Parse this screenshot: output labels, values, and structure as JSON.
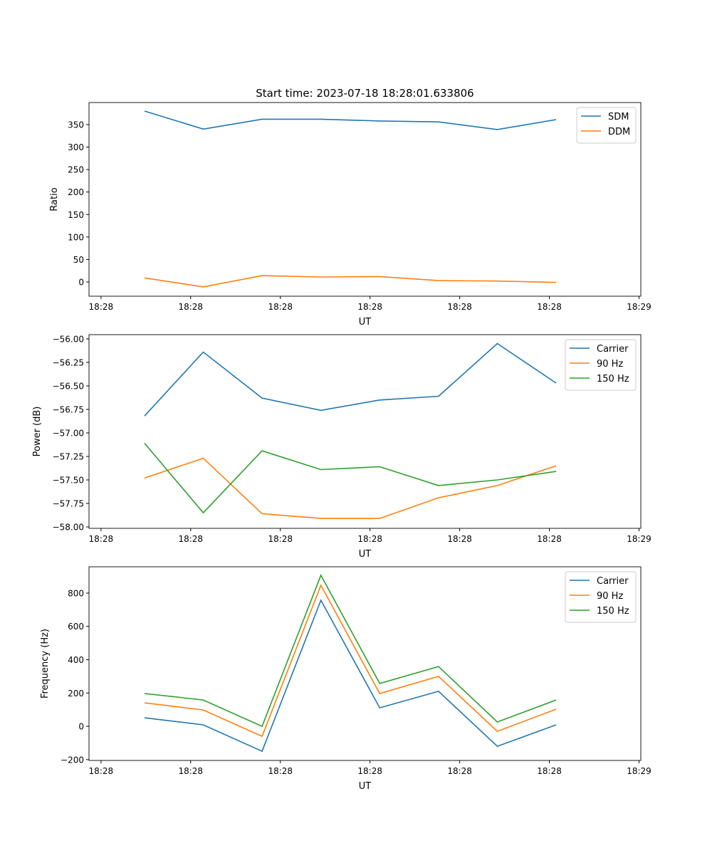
{
  "chart_data": [
    {
      "type": "line",
      "title": "Start time: 2023-07-18 18:28:01.633806",
      "xlabel": "UT",
      "ylabel": "Ratio",
      "x": [
        0,
        1,
        2,
        3,
        4,
        5,
        6,
        7
      ],
      "xlim": [
        -0.944,
        8.44
      ],
      "xticks": [
        -0.74,
        0.785,
        2.31,
        3.835,
        5.36,
        6.885,
        8.41
      ],
      "xtick_labels": [
        "18:28",
        "18:28",
        "18:28",
        "18:28",
        "18:28",
        "18:28",
        "18:29"
      ],
      "ylim": [
        -31.7,
        399
      ],
      "yticks": [
        0,
        50,
        100,
        150,
        200,
        250,
        300,
        350
      ],
      "ytick_labels": [
        "0",
        "50",
        "100",
        "150",
        "200",
        "250",
        "300",
        "350"
      ],
      "legend": "top-right",
      "series": [
        {
          "name": "SDM",
          "color": "#1f77b4",
          "values": [
            380,
            340,
            362,
            362,
            358,
            356,
            339,
            361
          ]
        },
        {
          "name": "DDM",
          "color": "#ff7f0e",
          "values": [
            9,
            -11,
            14,
            11,
            12,
            3,
            2,
            -1
          ]
        }
      ]
    },
    {
      "type": "line",
      "xlabel": "UT",
      "ylabel": "Power (dB)",
      "x": [
        0,
        1,
        2,
        3,
        4,
        5,
        6,
        7
      ],
      "xlim": [
        -0.944,
        8.44
      ],
      "xticks": [
        -0.74,
        0.785,
        2.31,
        3.835,
        5.36,
        6.885,
        8.41
      ],
      "xtick_labels": [
        "18:28",
        "18:28",
        "18:28",
        "18:28",
        "18:28",
        "18:28",
        "18:29"
      ],
      "ylim": [
        -58.015,
        -55.955
      ],
      "yticks": [
        -58.0,
        -57.75,
        -57.5,
        -57.25,
        -57.0,
        -56.75,
        -56.5,
        -56.25,
        -56.0
      ],
      "ytick_labels": [
        "−58.00",
        "−57.75",
        "−57.50",
        "−57.25",
        "−57.00",
        "−56.75",
        "−56.50",
        "−56.25",
        "−56.00"
      ],
      "legend": "top-right",
      "series": [
        {
          "name": "Carrier",
          "color": "#1f77b4",
          "values": [
            -56.82,
            -56.14,
            -56.63,
            -56.76,
            -56.65,
            -56.61,
            -56.05,
            -56.47
          ]
        },
        {
          "name": "90 Hz",
          "color": "#ff7f0e",
          "values": [
            -57.48,
            -57.27,
            -57.86,
            -57.91,
            -57.91,
            -57.69,
            -57.56,
            -57.35
          ]
        },
        {
          "name": "150 Hz",
          "color": "#2ca02c",
          "values": [
            -57.11,
            -57.85,
            -57.19,
            -57.39,
            -57.36,
            -57.56,
            -57.5,
            -57.41
          ]
        }
      ]
    },
    {
      "type": "line",
      "xlabel": "UT",
      "ylabel": "Frequency (Hz)",
      "x": [
        0,
        1,
        2,
        3,
        4,
        5,
        6,
        7
      ],
      "xlim": [
        -0.944,
        8.44
      ],
      "xticks": [
        -0.74,
        0.785,
        2.31,
        3.835,
        5.36,
        6.885,
        8.41
      ],
      "xtick_labels": [
        "18:28",
        "18:28",
        "18:28",
        "18:28",
        "18:28",
        "18:28",
        "18:29"
      ],
      "ylim": [
        -205,
        958
      ],
      "yticks": [
        -200,
        0,
        200,
        400,
        600,
        800
      ],
      "ytick_labels": [
        "−200",
        "0",
        "200",
        "400",
        "600",
        "800"
      ],
      "legend": "top-right",
      "series": [
        {
          "name": "Carrier",
          "color": "#1f77b4",
          "values": [
            51,
            9,
            -150,
            757,
            111,
            210,
            -120,
            9
          ]
        },
        {
          "name": "90 Hz",
          "color": "#ff7f0e",
          "values": [
            141,
            98,
            -60,
            847,
            197,
            300,
            -30,
            103
          ]
        },
        {
          "name": "150 Hz",
          "color": "#2ca02c",
          "values": [
            197,
            158,
            0,
            907,
            257,
            359,
            26,
            158
          ]
        }
      ]
    }
  ]
}
